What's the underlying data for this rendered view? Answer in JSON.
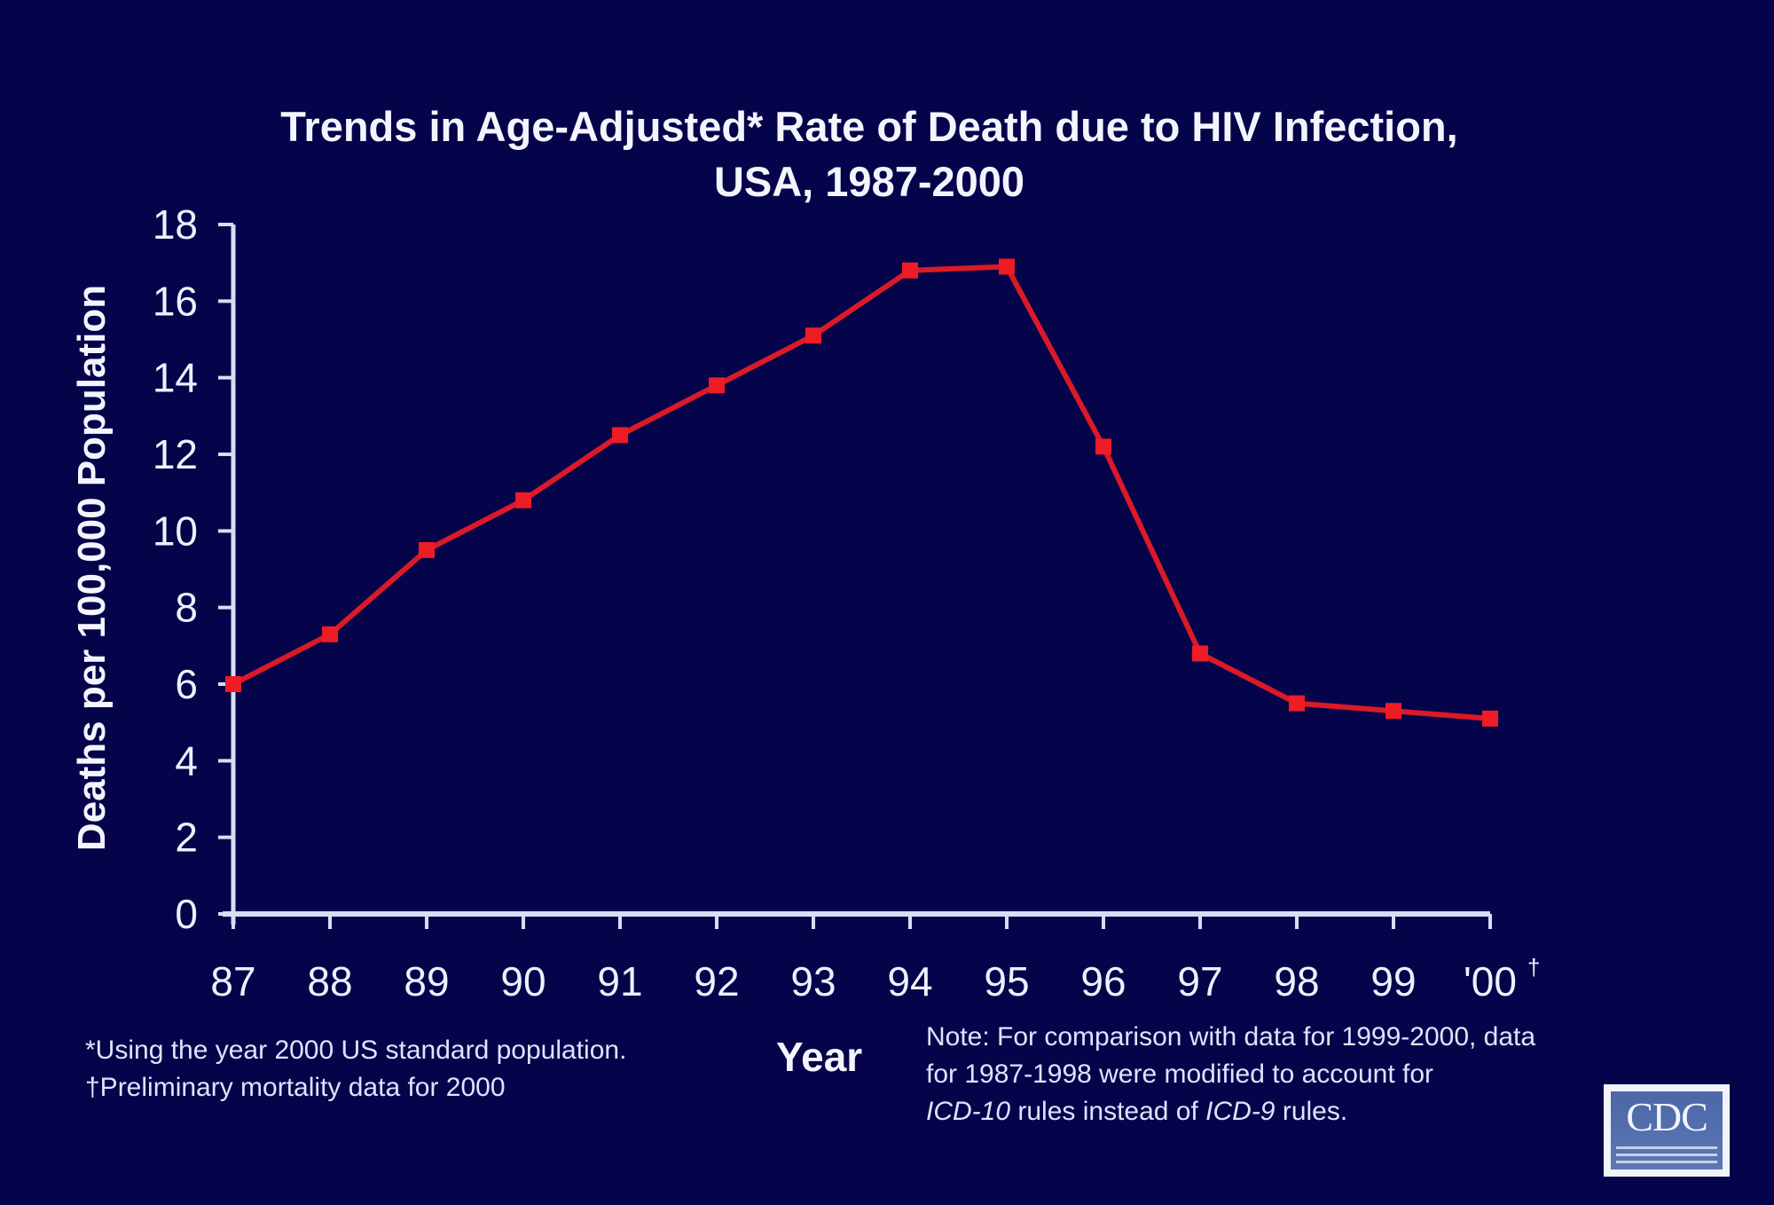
{
  "chart_data": {
    "type": "line",
    "title": "Trends in Age-Adjusted* Rate of Death due to HIV Infection,",
    "subtitle": "USA, 1987-2000",
    "xlabel": "Year",
    "ylabel": "Deaths per 100,000 Population",
    "categories": [
      "87",
      "88",
      "89",
      "90",
      "91",
      "92",
      "93",
      "94",
      "95",
      "96",
      "97",
      "98",
      "99",
      "'00"
    ],
    "series": [
      {
        "name": "Age-adjusted HIV death rate",
        "color": "#ee1c24",
        "values": [
          6.0,
          7.3,
          9.5,
          10.8,
          12.5,
          13.8,
          15.1,
          16.8,
          16.9,
          12.2,
          6.8,
          5.5,
          5.3,
          5.1
        ]
      }
    ],
    "ylim": [
      0,
      18
    ],
    "yticks": [
      0,
      2,
      4,
      6,
      8,
      10,
      12,
      14,
      16,
      18
    ],
    "ytick_labels": [
      "0",
      "2",
      "4",
      "6",
      "8",
      "10",
      "12",
      "14",
      "16",
      "18"
    ],
    "grid": false,
    "last_category_marker": "†",
    "footnotes": [
      "*Using the year 2000 US standard population.",
      "†Preliminary mortality data for 2000"
    ],
    "note": {
      "line1": "Note:  For comparison with data for 1999-2000, data",
      "line2": "for 1987-1998 were modified to account for",
      "line3_italic_a": "ICD-10",
      "line3_mid": " rules instead of ",
      "line3_italic_b": "ICD-9",
      "line3_end": " rules."
    }
  },
  "logo": {
    "text": "CDC"
  },
  "colors": {
    "background": "#05044a",
    "line": "#ee1c24",
    "axis": "#d8dcf5",
    "text": "#eef0ff"
  }
}
